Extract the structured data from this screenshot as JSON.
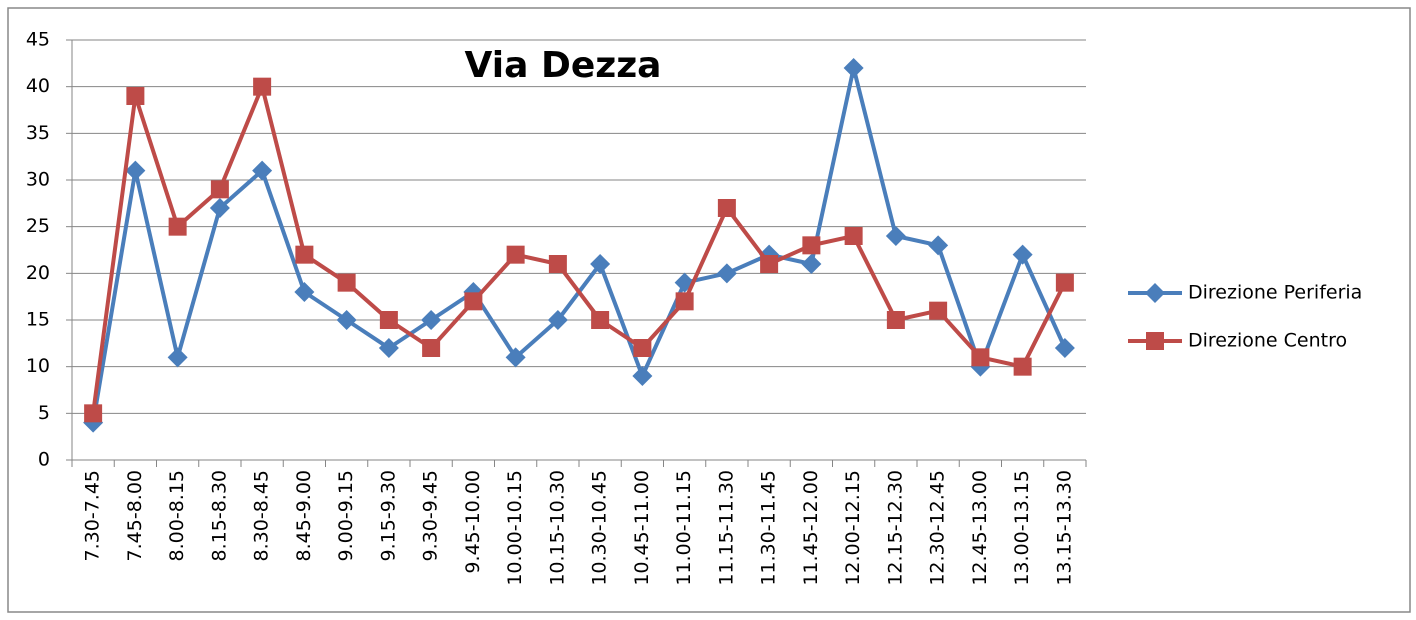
{
  "chart_data": {
    "type": "line",
    "title": "Via Dezza",
    "categories": [
      "7.30-7.45",
      "7.45-8.00",
      "8.00-8.15",
      "8.15-8.30",
      "8.30-8.45",
      "8.45-9.00",
      "9.00-9.15",
      "9.15-9.30",
      "9.30-9.45",
      "9.45-10.00",
      "10.00-10.15",
      "10.15-10.30",
      "10.30-10.45",
      "10.45-11.00",
      "11.00-11.15",
      "11.15-11.30",
      "11.30-11.45",
      "11.45-12.00",
      "12.00-12.15",
      "12.15-12.30",
      "12.30-12.45",
      "12.45-13.00",
      "13.00-13.15",
      "13.15-13.30"
    ],
    "series": [
      {
        "name": "Direzione Periferia",
        "color": "#4a7ebb",
        "values": [
          4,
          31,
          11,
          27,
          31,
          18,
          15,
          12,
          15,
          18,
          11,
          15,
          21,
          9,
          19,
          20,
          22,
          21,
          42,
          24,
          23,
          10,
          22,
          12
        ]
      },
      {
        "name": "Direzione Centro",
        "color": "#be4b48",
        "values": [
          5,
          39,
          25,
          29,
          40,
          22,
          19,
          15,
          12,
          17,
          22,
          21,
          15,
          12,
          17,
          27,
          21,
          23,
          24,
          15,
          16,
          11,
          10,
          19
        ]
      }
    ],
    "ylim": [
      0,
      45
    ],
    "yticks": [
      0,
      5,
      10,
      15,
      20,
      25,
      30,
      35,
      40,
      45
    ],
    "grid": true,
    "legend": "right"
  }
}
